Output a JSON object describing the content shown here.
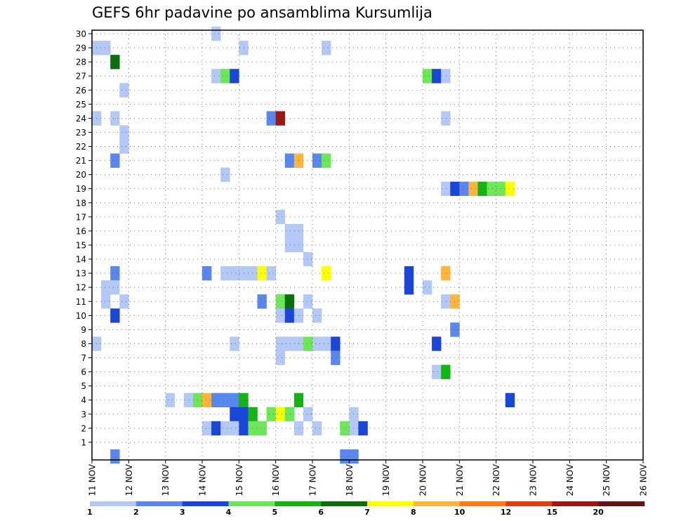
{
  "chart_data": {
    "type": "heatmap",
    "title": "GEFS 6hr padavine po ansamblima Kursumlija",
    "x_tick_labels": [
      "11 NOV",
      "12 NOV",
      "13 NOV",
      "14 NOV",
      "15 NOV",
      "16 NOV",
      "17 NOV",
      "18 NOV",
      "19 NOV",
      "20 NOV",
      "21 NOV",
      "22 NOV",
      "23 NOV",
      "24 NOV",
      "25 NOV",
      "26 NOV"
    ],
    "y_tick_labels": [
      "1",
      "2",
      "3",
      "4",
      "5",
      "6",
      "7",
      "8",
      "9",
      "10",
      "11",
      "12",
      "13",
      "14",
      "15",
      "16",
      "17",
      "18",
      "19",
      "20",
      "21",
      "22",
      "23",
      "24",
      "25",
      "26",
      "27",
      "28",
      "29",
      "30"
    ],
    "y_range": [
      0,
      30
    ],
    "x_range": [
      "11 NOV 00Z",
      "26 NOV 00Z"
    ],
    "time_step_hours": 6,
    "grid": true,
    "legend_position": "bottom",
    "legend_labels": [
      "1",
      "2",
      "3",
      "4",
      "5",
      "6",
      "7",
      "8",
      "10",
      "12",
      "15",
      "20"
    ],
    "legend_colors": [
      "#b4c8f5",
      "#5a87ee",
      "#1a46d8",
      "#6ee65a",
      "#14b414",
      "#0a6e0a",
      "#ffff00",
      "#ffb43c",
      "#ff7814",
      "#e13c14",
      "#a01414",
      "#641414"
    ],
    "cells_format": "[member, step_index_from_11_NOV_00Z, level_class_1_to_12]",
    "cells": [
      [
        30,
        13,
        1
      ],
      [
        29,
        0,
        1
      ],
      [
        29,
        1,
        1
      ],
      [
        29,
        16,
        1
      ],
      [
        29,
        25,
        1
      ],
      [
        28,
        2,
        6
      ],
      [
        27,
        13,
        1
      ],
      [
        27,
        14,
        4
      ],
      [
        27,
        15,
        3
      ],
      [
        27,
        36,
        4
      ],
      [
        27,
        37,
        3
      ],
      [
        27,
        38,
        1
      ],
      [
        26,
        3,
        1
      ],
      [
        24,
        0,
        1
      ],
      [
        24,
        2,
        1
      ],
      [
        24,
        19,
        2
      ],
      [
        24,
        20,
        11
      ],
      [
        24,
        38,
        1
      ],
      [
        23,
        3,
        1
      ],
      [
        22,
        3,
        1
      ],
      [
        21,
        2,
        2
      ],
      [
        21,
        21,
        2
      ],
      [
        21,
        22,
        8
      ],
      [
        21,
        24,
        2
      ],
      [
        21,
        25,
        4
      ],
      [
        20,
        14,
        1
      ],
      [
        19,
        38,
        1
      ],
      [
        19,
        39,
        3
      ],
      [
        19,
        40,
        2
      ],
      [
        19,
        41,
        8
      ],
      [
        19,
        42,
        5
      ],
      [
        19,
        43,
        4
      ],
      [
        19,
        44,
        4
      ],
      [
        19,
        45,
        7
      ],
      [
        17,
        20,
        1
      ],
      [
        16,
        21,
        1
      ],
      [
        16,
        22,
        1
      ],
      [
        15,
        21,
        1
      ],
      [
        15,
        22,
        1
      ],
      [
        14,
        23,
        1
      ],
      [
        13,
        2,
        2
      ],
      [
        13,
        12,
        2
      ],
      [
        13,
        14,
        1
      ],
      [
        13,
        15,
        1
      ],
      [
        13,
        16,
        1
      ],
      [
        13,
        17,
        1
      ],
      [
        13,
        18,
        7
      ],
      [
        13,
        19,
        1
      ],
      [
        13,
        25,
        7
      ],
      [
        13,
        34,
        3
      ],
      [
        13,
        38,
        8
      ],
      [
        12,
        1,
        1
      ],
      [
        12,
        2,
        1
      ],
      [
        12,
        34,
        3
      ],
      [
        12,
        36,
        1
      ],
      [
        11,
        1,
        1
      ],
      [
        11,
        3,
        1
      ],
      [
        11,
        18,
        2
      ],
      [
        11,
        20,
        4
      ],
      [
        11,
        21,
        6
      ],
      [
        11,
        23,
        1
      ],
      [
        11,
        38,
        1
      ],
      [
        11,
        39,
        8
      ],
      [
        10,
        2,
        3
      ],
      [
        10,
        20,
        1
      ],
      [
        10,
        21,
        3
      ],
      [
        10,
        22,
        1
      ],
      [
        10,
        24,
        1
      ],
      [
        9,
        39,
        2
      ],
      [
        8,
        0,
        1
      ],
      [
        8,
        15,
        1
      ],
      [
        8,
        20,
        1
      ],
      [
        8,
        21,
        1
      ],
      [
        8,
        22,
        1
      ],
      [
        8,
        23,
        4
      ],
      [
        8,
        24,
        1
      ],
      [
        8,
        25,
        1
      ],
      [
        8,
        26,
        3
      ],
      [
        8,
        37,
        3
      ],
      [
        7,
        20,
        1
      ],
      [
        7,
        26,
        2
      ],
      [
        6,
        37,
        1
      ],
      [
        6,
        38,
        5
      ],
      [
        4,
        8,
        1
      ],
      [
        4,
        10,
        1
      ],
      [
        4,
        11,
        4
      ],
      [
        4,
        12,
        8
      ],
      [
        4,
        13,
        2
      ],
      [
        4,
        14,
        2
      ],
      [
        4,
        15,
        2
      ],
      [
        4,
        16,
        5
      ],
      [
        4,
        22,
        5
      ],
      [
        4,
        45,
        3
      ],
      [
        3,
        15,
        3
      ],
      [
        3,
        16,
        3
      ],
      [
        3,
        17,
        5
      ],
      [
        3,
        19,
        4
      ],
      [
        3,
        20,
        7
      ],
      [
        3,
        21,
        4
      ],
      [
        3,
        23,
        1
      ],
      [
        3,
        28,
        1
      ],
      [
        2,
        12,
        1
      ],
      [
        2,
        13,
        3
      ],
      [
        2,
        14,
        1
      ],
      [
        2,
        15,
        1
      ],
      [
        2,
        16,
        3
      ],
      [
        2,
        17,
        4
      ],
      [
        2,
        18,
        4
      ],
      [
        2,
        22,
        1
      ],
      [
        2,
        24,
        1
      ],
      [
        2,
        27,
        4
      ],
      [
        2,
        28,
        1
      ],
      [
        2,
        29,
        3
      ],
      [
        0,
        2,
        2
      ],
      [
        0,
        27,
        2
      ],
      [
        0,
        28,
        2
      ]
    ]
  }
}
